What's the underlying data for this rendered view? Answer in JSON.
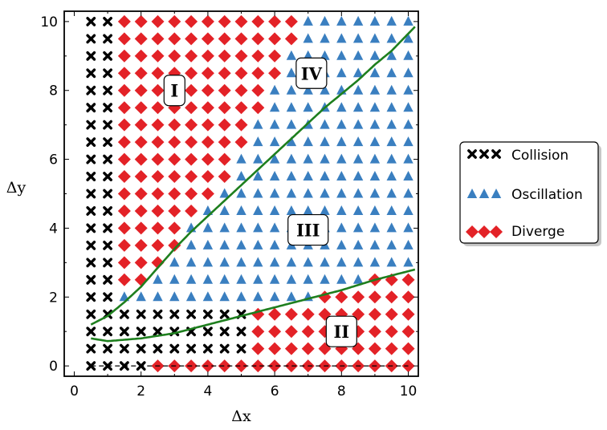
{
  "chart_data": {
    "type": "scatter",
    "xlabel": "Δx",
    "ylabel": "Δy",
    "xlim": [
      -0.3,
      10.3
    ],
    "ylim": [
      -0.3,
      10.3
    ],
    "x_ticks": [
      "0",
      "2",
      "4",
      "6",
      "8",
      "10"
    ],
    "y_ticks": [
      "0",
      "2",
      "4",
      "6",
      "8",
      "10"
    ],
    "grid": false,
    "legend_position": "right",
    "grid_step": 0.5,
    "x_range": [
      0.5,
      10
    ],
    "y_range": [
      0,
      10
    ],
    "series": [
      {
        "name": "Collision",
        "marker": "x",
        "color": "#000000"
      },
      {
        "name": "Oscillation",
        "marker": "triangle",
        "color": "#3a7fc0"
      },
      {
        "name": "Diverge",
        "marker": "diamond",
        "color": "#e32227"
      }
    ],
    "classification_rule": {
      "collision_x_max": 1.0,
      "collision_y_max": 1.5,
      "collision_y_max_x_range": [
        1.5,
        5.0
      ],
      "collision_y_zero_x_max": 2.0,
      "lower_boundary": {
        "x": [
          0.5,
          1,
          2,
          3,
          4,
          5,
          6,
          7,
          8,
          9,
          10.2
        ],
        "y": [
          0.8,
          0.72,
          0.8,
          0.95,
          1.2,
          1.45,
          1.7,
          1.95,
          2.2,
          2.5,
          2.8
        ]
      },
      "upper_boundary": {
        "x": [
          0.5,
          1,
          1.5,
          2,
          2.5,
          3,
          3.5,
          4,
          4.5,
          5,
          5.5,
          6,
          6.5,
          7,
          7.5,
          8,
          8.5,
          9,
          9.5,
          10.2
        ],
        "y": [
          1.2,
          1.45,
          1.85,
          2.3,
          2.85,
          3.4,
          3.9,
          4.35,
          4.8,
          5.25,
          5.7,
          6.15,
          6.6,
          7.05,
          7.5,
          7.9,
          8.3,
          8.75,
          9.15,
          9.85
        ]
      },
      "diverge_upper_line": {
        "x": [
          1.5,
          2.0,
          2.5,
          3.0,
          3.5,
          4.0,
          4.5,
          5.0,
          5.5,
          6.0,
          6.5
        ],
        "min_y": [
          2.5,
          2.5,
          3.0,
          3.5,
          4.5,
          5.0,
          5.5,
          6.5,
          7.5,
          8.5,
          9.5
        ]
      }
    },
    "curves": [
      {
        "name": "upper-boundary",
        "color": "#1e7f1e"
      },
      {
        "name": "lower-boundary",
        "color": "#1e7f1e"
      }
    ],
    "dashed_baseline": {
      "y": 0,
      "x": [
        0.5,
        10
      ],
      "color": "#000000"
    },
    "annotations": [
      {
        "text": "I",
        "x": 3.0,
        "y": 8.0
      },
      {
        "text": "IV",
        "x": 7.1,
        "y": 8.5
      },
      {
        "text": "III",
        "x": 7.0,
        "y": 3.95
      },
      {
        "text": "II",
        "x": 8.0,
        "y": 1.0
      }
    ]
  },
  "legend": {
    "items": [
      "Collision",
      "Oscillation",
      "Diverge"
    ]
  }
}
